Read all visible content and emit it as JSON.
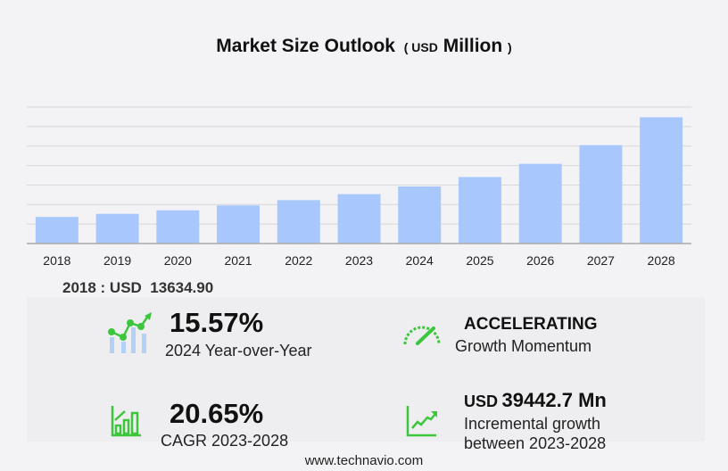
{
  "title": {
    "main": "Market Size Outlook",
    "open": "(",
    "unit": "USD",
    "unit2": "Million",
    "close": ")"
  },
  "chart_data": {
    "type": "bar",
    "title": "Market Size Outlook (USD Million)",
    "categories": [
      "2018",
      "2019",
      "2020",
      "2021",
      "2022",
      "2023",
      "2024",
      "2025",
      "2026",
      "2027",
      "2028"
    ],
    "values": [
      13634.9,
      15230,
      17040,
      19540,
      22270,
      25332,
      29277,
      34090,
      40900,
      50450,
      64775
    ],
    "ylim": [
      0,
      70000
    ],
    "grid": true,
    "bar_color": "#a8c8fd"
  },
  "base_year": {
    "label": "2018 : USD",
    "value": "13634.90"
  },
  "stats": {
    "yoy": {
      "value": "15.57%",
      "label": "2024 Year-over-Year"
    },
    "momentum": {
      "value": "ACCELERATING",
      "label": "Growth Momentum"
    },
    "cagr": {
      "value": "20.65%",
      "label": "CAGR 2023-2028"
    },
    "incremental": {
      "prefix": "USD",
      "value": "39442.7 Mn",
      "label1": "Incremental growth",
      "label2": "between 2023-2028"
    }
  },
  "footer": "www.technavio.com",
  "colors": {
    "green": "#3cc63c",
    "bar": "#a8c8fd"
  }
}
